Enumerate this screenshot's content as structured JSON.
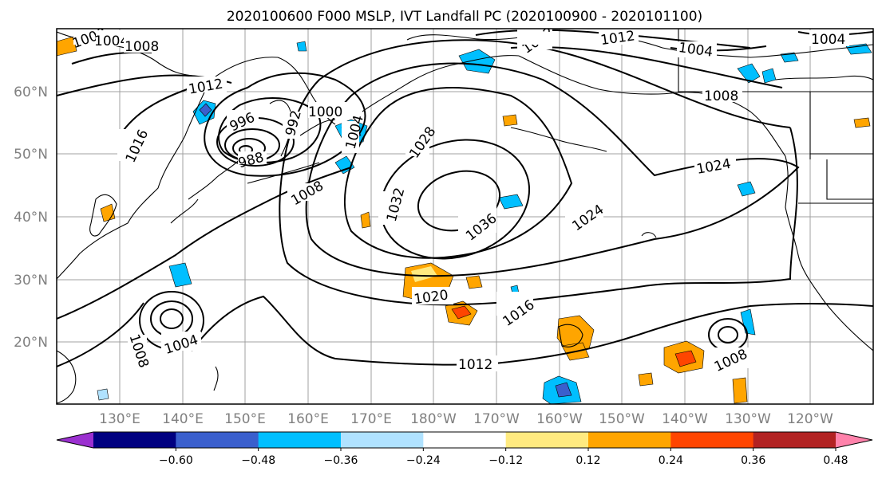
{
  "title": "2020100600 F000 MSLP, IVT Landfall PC (2020100900 - 2020101100)",
  "lat_labels": [
    "60°N",
    "50°N",
    "40°N",
    "30°N",
    "20°N"
  ],
  "lon_labels": [
    "130°E",
    "140°E",
    "150°E",
    "160°E",
    "170°E",
    "180°W",
    "170°W",
    "160°W",
    "150°W",
    "140°W",
    "130°W",
    "120°W"
  ],
  "colorbar": {
    "ticks": [
      "−0.60",
      "−0.48",
      "−0.36",
      "−0.24",
      "−0.12",
      "0.12",
      "0.24",
      "0.36",
      "0.48",
      "0.60"
    ],
    "colors": [
      "#9b30d0",
      "#000080",
      "#3a5fcd",
      "#00bfff",
      "#b0e2ff",
      "#ffffff",
      "#ffea80",
      "#ffa500",
      "#ff4500",
      "#b22222",
      "#ff82ab"
    ]
  },
  "contour_labels": [
    "1000",
    "1004",
    "1008",
    "1004",
    "1012",
    "1016",
    "1012",
    "1004",
    "1008",
    "1012",
    "996",
    "992",
    "988",
    "1000",
    "1004",
    "1016",
    "1008",
    "1028",
    "1032",
    "1036",
    "1024",
    "1024",
    "1020",
    "1016",
    "1012",
    "1008",
    "1004",
    "1008"
  ]
}
